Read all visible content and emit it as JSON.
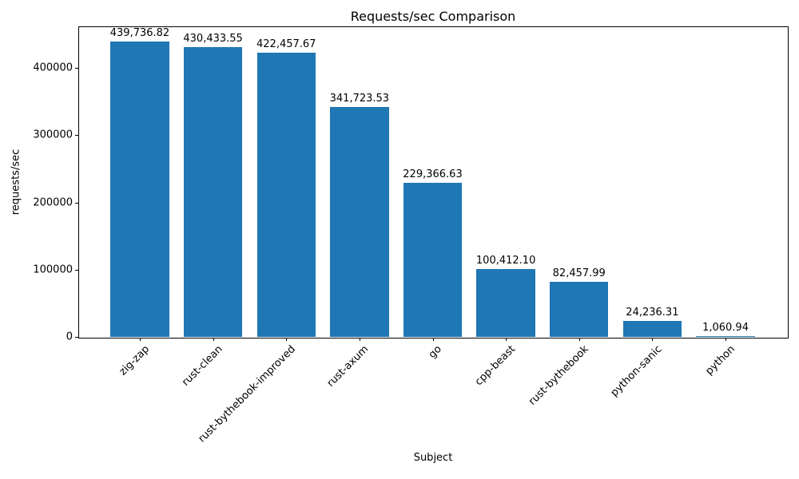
{
  "chart_data": {
    "type": "bar",
    "title": "Requests/sec Comparison",
    "xlabel": "Subject",
    "ylabel": "requests/sec",
    "categories": [
      "zig-zap",
      "rust-clean",
      "rust-bythebook-improved",
      "rust-axum",
      "go",
      "cpp-beast",
      "rust-bythebook",
      "python-sanic",
      "python"
    ],
    "values": [
      439736.82,
      430433.55,
      422457.67,
      341723.53,
      229366.63,
      100412.1,
      82457.99,
      24236.31,
      1060.94
    ],
    "value_labels": [
      "439,736.82",
      "430,433.55",
      "422,457.67",
      "341,723.53",
      "229,366.63",
      "100,412.10",
      "82,457.99",
      "24,236.31",
      "1,060.94"
    ],
    "yticks": [
      0,
      100000,
      200000,
      300000,
      400000
    ],
    "ytick_labels": [
      "0",
      "100000",
      "200000",
      "300000",
      "400000"
    ],
    "ylim": [
      0,
      461724
    ],
    "bar_color": "#1f77b4",
    "grid": false,
    "legend_position": "none",
    "bar_width_fraction": 0.8,
    "x_margin_fraction": 0.05,
    "xtick_rotation_deg": 45
  }
}
